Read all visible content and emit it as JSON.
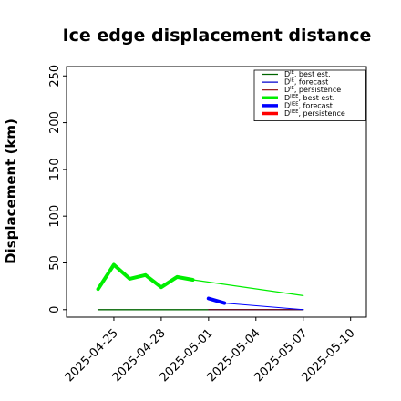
{
  "chart_data": {
    "type": "line",
    "title": "Ice edge displacement distance",
    "ylabel": "Displacement (km)",
    "xlabel": "",
    "ylim": [
      -8,
      260
    ],
    "xlim": [
      "2025-04-22",
      "2025-05-11"
    ],
    "yticks": [
      0,
      50,
      100,
      150,
      200,
      250
    ],
    "xticks": [
      {
        "date": "2025-04-25",
        "label": "2025-04-25",
        "color": "#000000"
      },
      {
        "date": "2025-04-28",
        "label": "2025-04-28",
        "color": "#000000"
      },
      {
        "date": "2025-05-01",
        "label": "2025-05-01",
        "color": "#228b22"
      },
      {
        "date": "2025-05-04",
        "label": "2025-05-04",
        "color": "#000000"
      },
      {
        "date": "2025-05-07",
        "label": "2025-05-07",
        "color": "#000000"
      },
      {
        "date": "2025-05-10",
        "label": "2025-05-10",
        "color": "#000000"
      }
    ],
    "grid": false,
    "legend_position": "top-right",
    "series": [
      {
        "name": "D^IE, best est.",
        "legend_main": "D",
        "legend_sup": "IE",
        "legend_suffix": ", best est.",
        "color": "#006400",
        "width": 1.3,
        "points": [
          [
            "2025-04-24",
            0
          ],
          [
            "2025-05-07",
            0
          ]
        ]
      },
      {
        "name": "D^IE, forecast",
        "legend_main": "D",
        "legend_sup": "IE",
        "legend_suffix": ", forecast",
        "color": "#0000cd",
        "width": 1.0,
        "points": [
          [
            "2025-05-01",
            0
          ],
          [
            "2025-05-07",
            0
          ]
        ]
      },
      {
        "name": "D^IE, persistence",
        "legend_main": "D",
        "legend_sup": "IE",
        "legend_suffix": ", persistence",
        "color": "#8b0000",
        "width": 1.0,
        "points": [
          [
            "2025-05-01",
            0
          ],
          [
            "2025-05-07",
            0
          ]
        ]
      },
      {
        "name": "D^IIEE, best est.",
        "legend_main": "D",
        "legend_sup": "IIEE",
        "legend_suffix": ", best est.",
        "color": "#00ee00",
        "width": 4,
        "points": [
          [
            "2025-04-24",
            22
          ],
          [
            "2025-04-25",
            48
          ],
          [
            "2025-04-26",
            33
          ],
          [
            "2025-04-27",
            37
          ],
          [
            "2025-04-28",
            24
          ],
          [
            "2025-04-29",
            35
          ],
          [
            "2025-04-30",
            32
          ]
        ]
      },
      {
        "name": "D^IIEE, forecast",
        "legend_main": "D",
        "legend_sup": "IIEE",
        "legend_suffix": ", forecast",
        "color": "#0000ff",
        "width": 4,
        "points": [
          [
            "2025-05-01",
            12
          ],
          [
            "2025-05-02",
            7
          ]
        ]
      },
      {
        "name": "D^IIEE, persistence",
        "legend_main": "D",
        "legend_sup": "IIEE",
        "legend_suffix": ", persistence",
        "color": "#ff0000",
        "width": 4,
        "points": []
      },
      {
        "name": "thin green extension",
        "legend": false,
        "color": "#00ee00",
        "width": 1.2,
        "points": [
          [
            "2025-04-30",
            32
          ],
          [
            "2025-05-07",
            15
          ]
        ]
      },
      {
        "name": "thin blue extension",
        "legend": false,
        "color": "#0000ff",
        "width": 1.0,
        "points": [
          [
            "2025-05-02",
            7
          ],
          [
            "2025-05-07",
            0
          ]
        ]
      }
    ]
  }
}
